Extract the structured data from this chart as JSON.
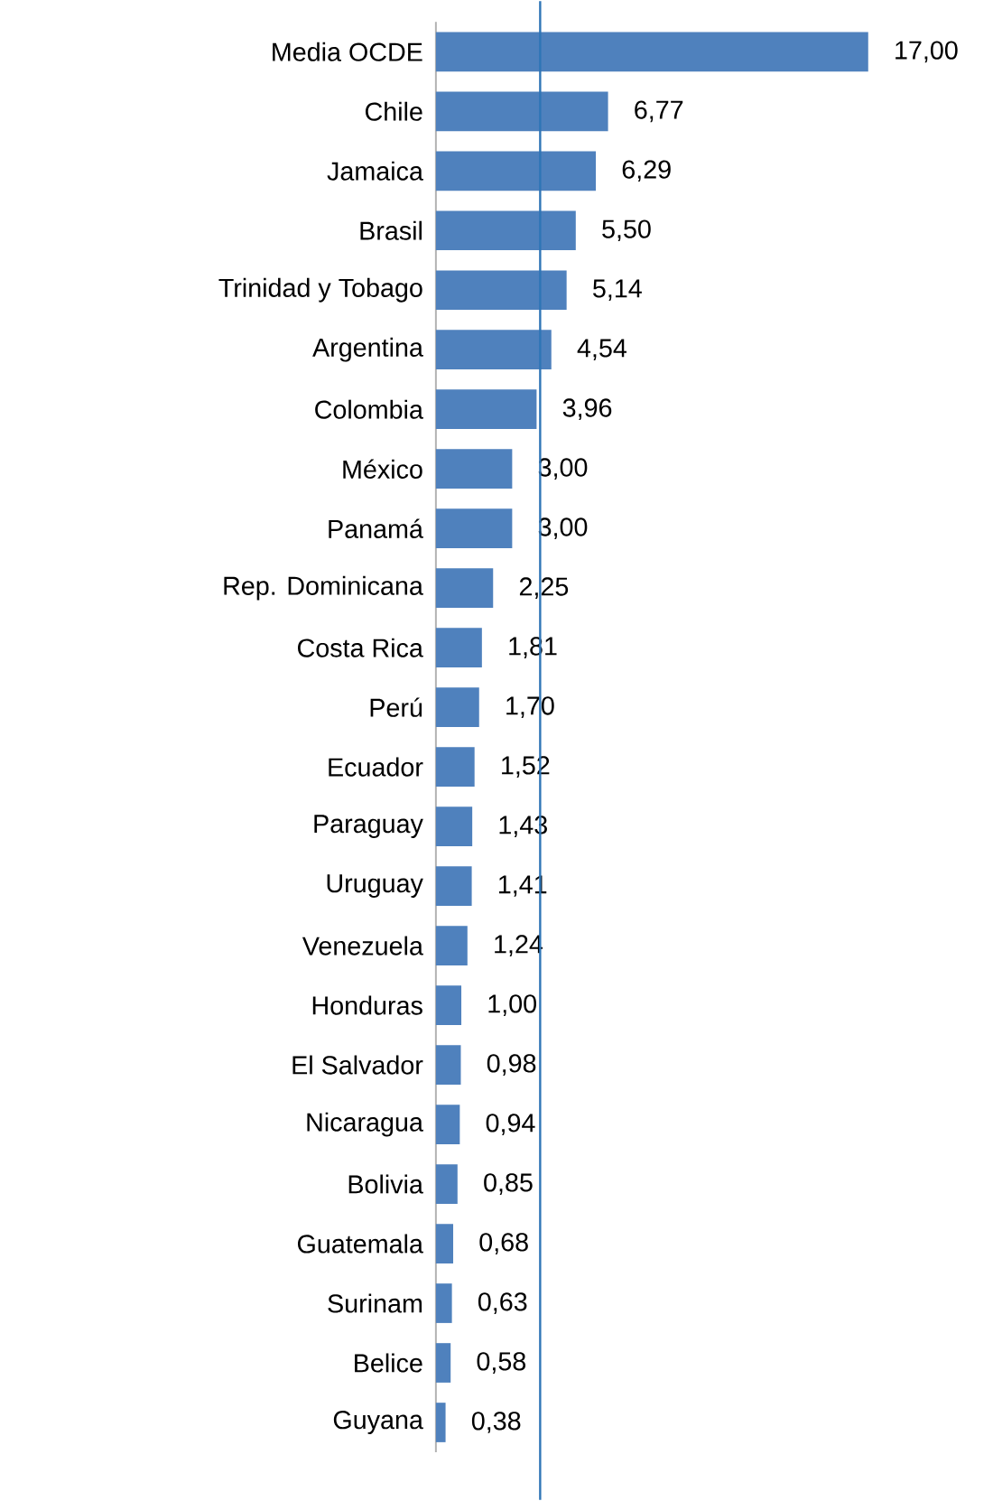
{
  "chart_data": {
    "type": "bar",
    "orientation": "horizontal",
    "color": "#4f81bd",
    "categories": [
      "Media OCDE",
      "Chile",
      "Jamaica",
      "Brasil",
      "Trinidad y Tobago",
      "Argentina",
      "Colombia",
      "México",
      "Panamá",
      "Rep. Dominicana",
      "Costa Rica",
      "Perú",
      "Ecuador",
      "Paraguay",
      "Uruguay",
      "Venezuela",
      "Honduras",
      "El Salvador",
      "Nicaragua",
      "Bolivia",
      "Guatemala",
      "Surinam",
      "Belice",
      "Guyana"
    ],
    "values": [
      17.0,
      6.77,
      6.29,
      5.5,
      5.14,
      4.54,
      3.96,
      3.0,
      3.0,
      2.25,
      1.81,
      1.7,
      1.52,
      1.43,
      1.41,
      1.24,
      1.0,
      0.98,
      0.94,
      0.85,
      0.68,
      0.63,
      0.58,
      0.38
    ],
    "value_labels": [
      "17,00",
      "6,77",
      "6,29",
      "5,50",
      "5,14",
      "4,54",
      "3,96",
      "3,00",
      "3,00",
      "2,25",
      "1,81",
      "1,70",
      "1,52",
      "1,43",
      "1,41",
      "1,24",
      "1,00",
      "0,98",
      "0,94",
      "0,85",
      "0,68",
      "0,63",
      "0,58",
      "0,38"
    ],
    "xlim": [
      0,
      17
    ],
    "ref_lines": [
      {
        "axis": "x",
        "value": 4.1,
        "color": "#2e75b6"
      }
    ]
  }
}
